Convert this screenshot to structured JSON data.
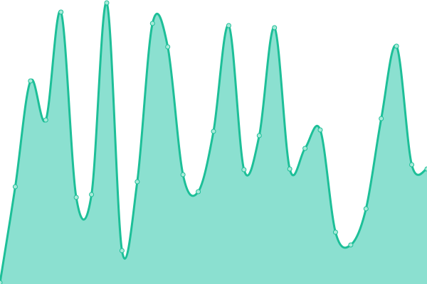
{
  "chart_data": {
    "type": "area",
    "title": "",
    "xlabel": "",
    "ylabel": "",
    "x": [
      0,
      1,
      2,
      3,
      4,
      5,
      6,
      7,
      8,
      9,
      10,
      11,
      12,
      13,
      14,
      15,
      16,
      17,
      18,
      19,
      20,
      21,
      22,
      23,
      24,
      25,
      26,
      27,
      28
    ],
    "values": [
      2,
      137,
      286,
      231,
      383,
      122,
      126,
      396,
      47,
      144,
      367,
      334,
      154,
      130,
      215,
      364,
      161,
      209,
      361,
      162,
      191,
      217,
      73,
      55,
      106,
      233,
      335,
      168,
      162
    ],
    "ylim": [
      0,
      400
    ],
    "grid": false,
    "axes_visible": false,
    "colors": {
      "line": "#1dbf98",
      "fill": "#8be0d0",
      "marker_fill": "#a8ead9",
      "marker_stroke": "#1dbf98"
    }
  }
}
